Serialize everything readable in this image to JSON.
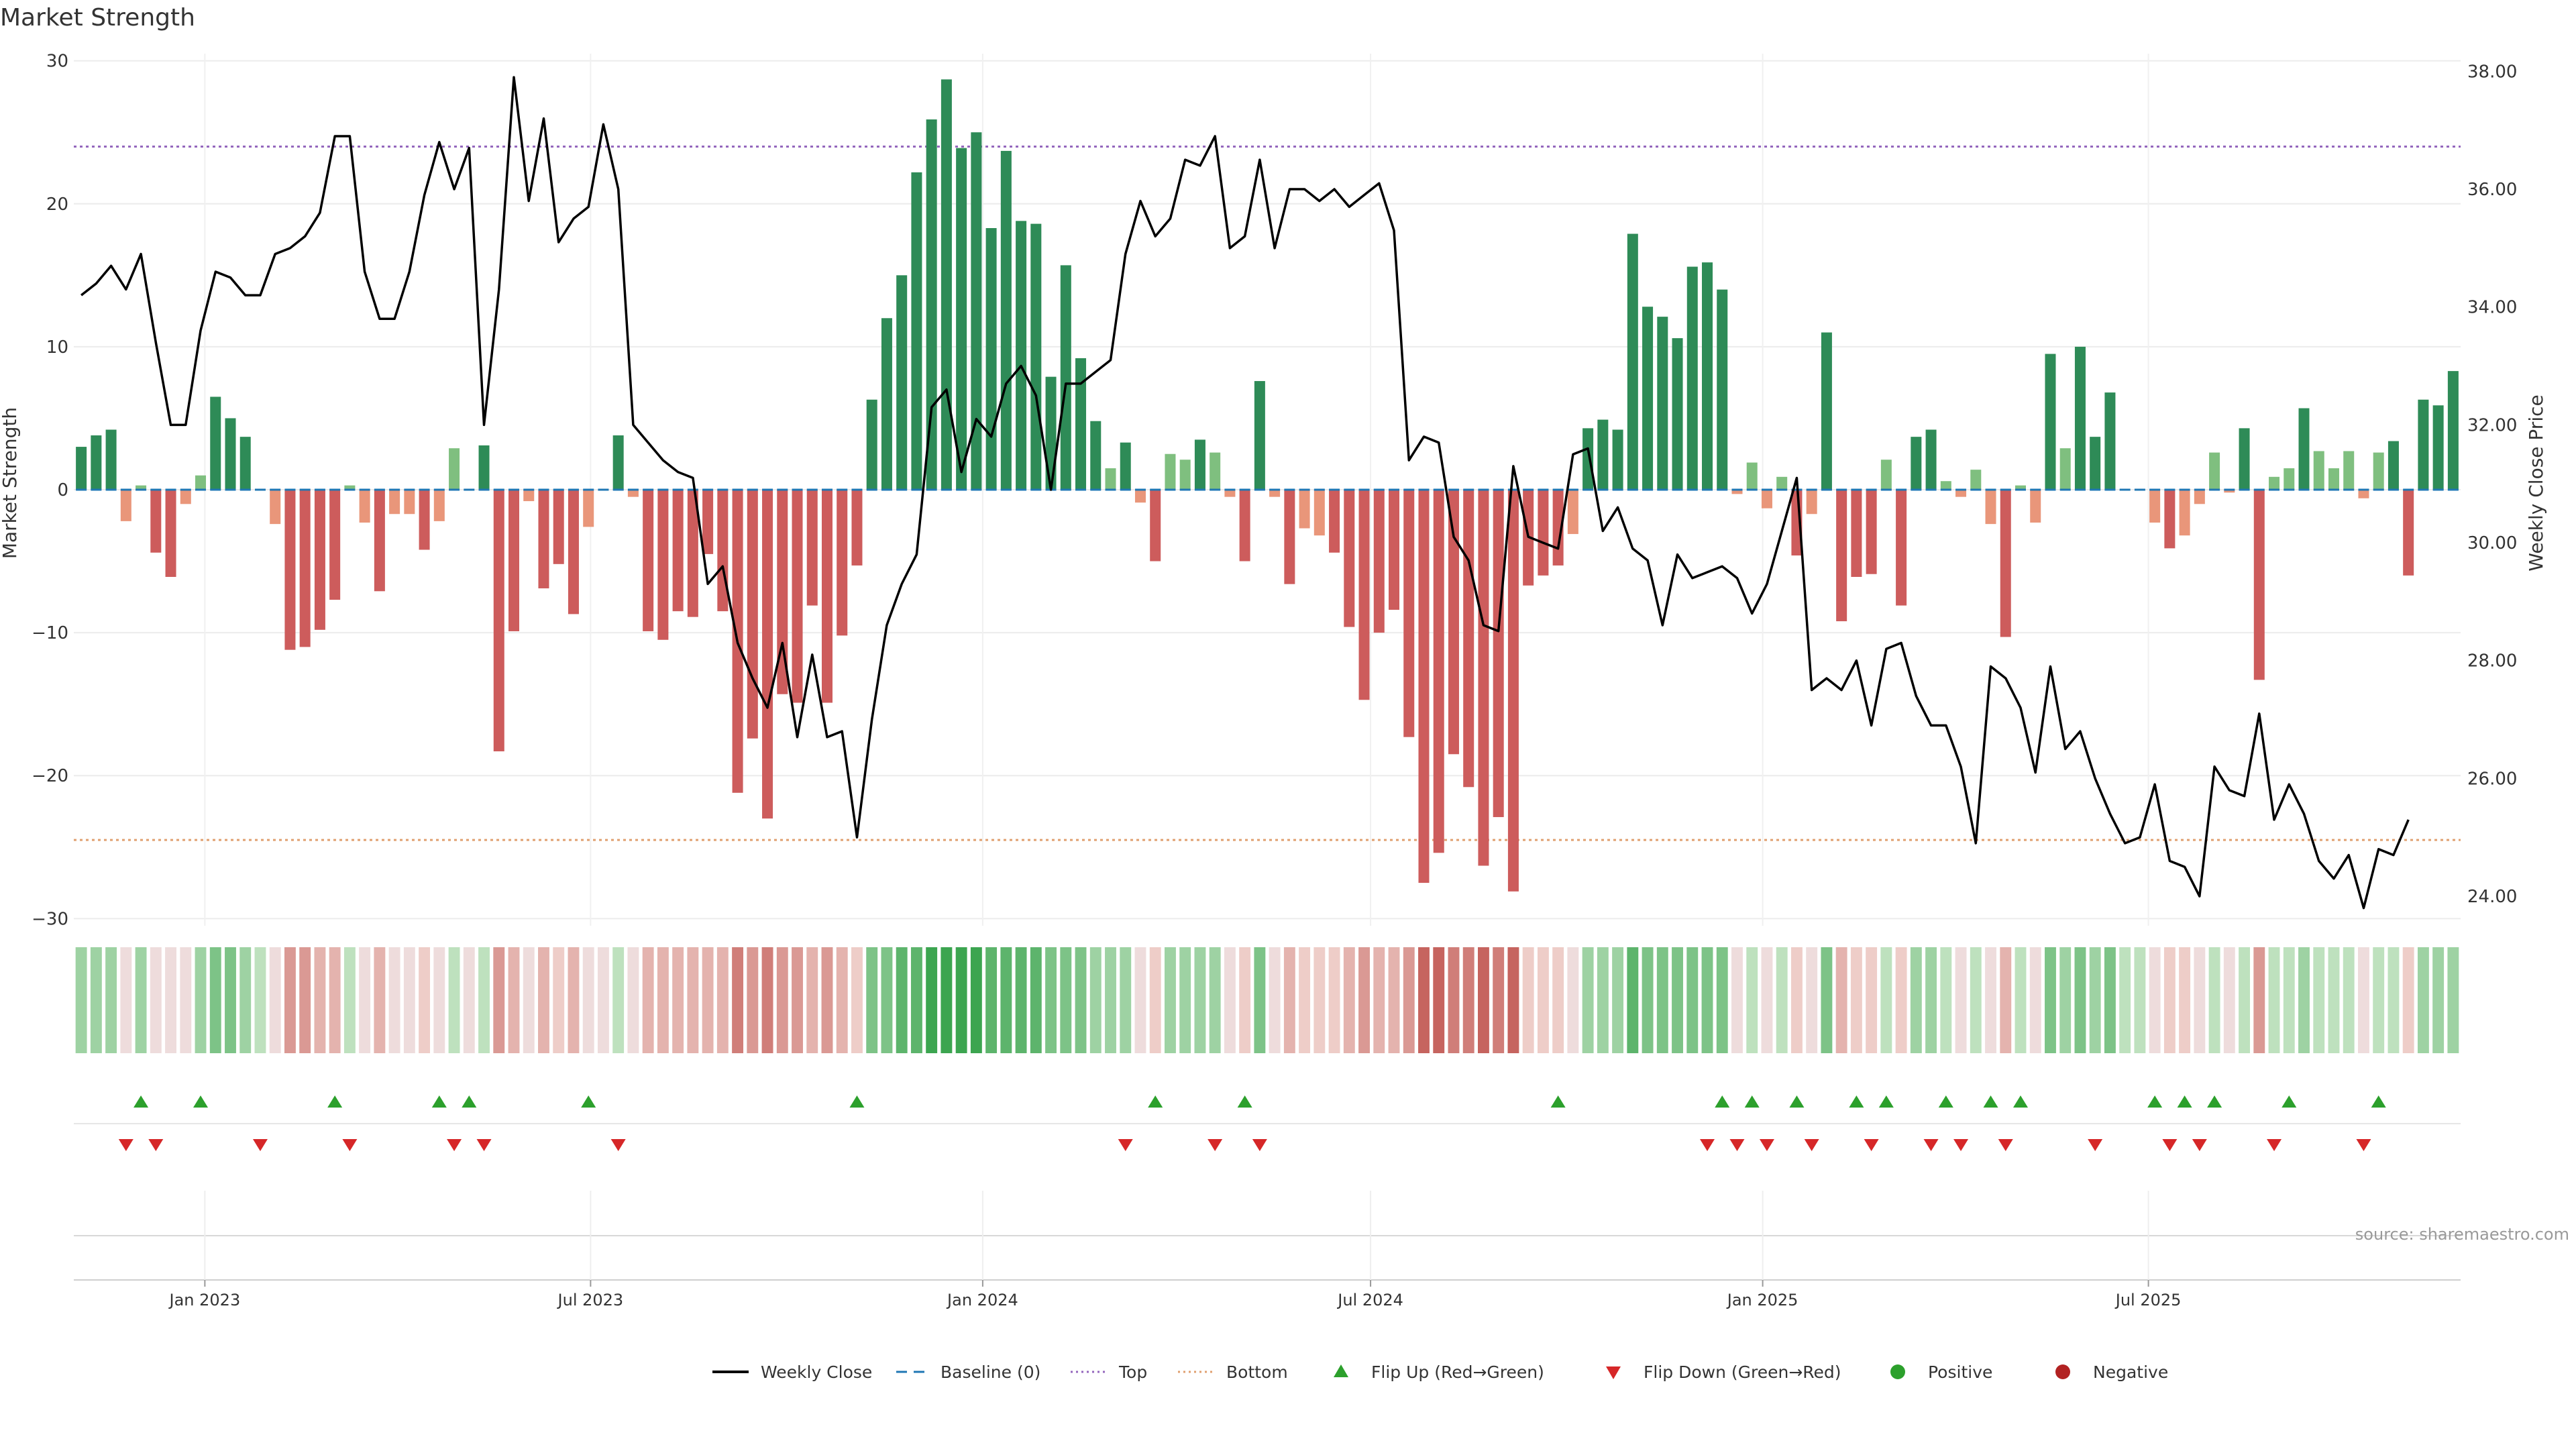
{
  "title": "Market Strength",
  "source": "source: sharemaestro.com",
  "colors": {
    "strong_green": "#2e8b57",
    "light_green": "#7fbf7f",
    "strong_red": "#cd5c5c",
    "light_red": "#e9967a",
    "price_line": "#000000",
    "baseline": "#1f77b4",
    "top_line": "#9467bd",
    "bottom_line": "#e0a070",
    "flip_up": "#2ca02c",
    "flip_down": "#d62728"
  },
  "legend": [
    {
      "label": "Weekly Close",
      "kind": "solid-line",
      "color": "#000000"
    },
    {
      "label": "Baseline (0)",
      "kind": "dash-line",
      "color": "#1f77b4"
    },
    {
      "label": "Top",
      "kind": "dot-line",
      "color": "#9467bd"
    },
    {
      "label": "Bottom",
      "kind": "dot-line",
      "color": "#e0a070"
    },
    {
      "label": "Flip Up (Red→Green)",
      "kind": "triangle-up",
      "color": "#2ca02c"
    },
    {
      "label": "Flip Down (Green→Red)",
      "kind": "triangle-down",
      "color": "#d62728"
    },
    {
      "label": "Positive",
      "kind": "dot",
      "color": "#2ca02c"
    },
    {
      "label": "Negative",
      "kind": "dot",
      "color": "#b22222"
    }
  ],
  "chart_data": {
    "type": "bar",
    "x_start": "2022-11-04",
    "x_interval": "1 week",
    "xticks": [
      {
        "label": "Jan 2023",
        "date": "2023-01-01"
      },
      {
        "label": "Jul 2023",
        "date": "2023-07-01"
      },
      {
        "label": "Jan 2024",
        "date": "2024-01-01"
      },
      {
        "label": "Jul 2024",
        "date": "2024-07-01"
      },
      {
        "label": "Jan 2025",
        "date": "2025-01-01"
      },
      {
        "label": "Jul 2025",
        "date": "2025-07-01"
      }
    ],
    "y_left": {
      "label": "Market Strength",
      "lim": [
        -30.5,
        30.5
      ],
      "ticks": [
        30,
        20,
        10,
        0,
        -10,
        -20,
        -30
      ],
      "tick_labels": [
        "30",
        "20",
        "10",
        "0",
        "−10",
        "−20",
        "−30"
      ]
    },
    "y_right": {
      "label": "Weekly Close Price",
      "lim": [
        23.5,
        38.3
      ],
      "ticks": [
        38,
        36,
        34,
        32,
        30,
        28,
        26,
        24
      ],
      "tick_labels": [
        "38.00",
        "36.00",
        "34.00",
        "32.00",
        "30.00",
        "28.00",
        "26.00",
        "24.00"
      ]
    },
    "top_level": 24,
    "bottom_level": -24.5,
    "strength": [
      3,
      3.8,
      4.2,
      -2.2,
      0.3,
      -4.4,
      -6.1,
      -1,
      1,
      6.5,
      5,
      3.7,
      0,
      -2.4,
      -11.2,
      -11,
      -9.8,
      -7.7,
      0.3,
      -2.3,
      -7.1,
      -1.7,
      -1.7,
      -4.2,
      -2.2,
      2.9,
      0,
      3.1,
      -18.3,
      -9.9,
      -0.8,
      -6.9,
      -5.2,
      -8.7,
      -2.6,
      0,
      3.8,
      -0.5,
      -9.9,
      -10.5,
      -8.5,
      -8.9,
      -4.5,
      -8.5,
      -21.2,
      -17.4,
      -23,
      -14.3,
      -14.9,
      -8.1,
      -14.9,
      -10.2,
      -5.3,
      6.3,
      12,
      15,
      22.2,
      25.9,
      28.7,
      23.9,
      25,
      18.3,
      23.7,
      18.8,
      18.6,
      7.9,
      15.7,
      9.2,
      4.8,
      1.5,
      3.3,
      -0.9,
      -5,
      2.5,
      2.1,
      3.5,
      2.6,
      -0.5,
      -5,
      7.6,
      -0.5,
      -6.6,
      -2.7,
      -3.2,
      -4.4,
      -9.6,
      -14.7,
      -10,
      -8.4,
      -17.3,
      -27.5,
      -25.4,
      -18.5,
      -20.8,
      -26.3,
      -22.9,
      -28.1,
      -6.7,
      -6,
      -5.3,
      -3.1,
      4.3,
      4.9,
      4.2,
      17.9,
      12.8,
      12.1,
      10.6,
      15.6,
      15.9,
      14,
      -0.3,
      1.9,
      -1.3,
      0.9,
      -4.6,
      -1.7,
      11,
      -9.2,
      -6.1,
      -5.9,
      2.1,
      -8.1,
      3.7,
      4.2,
      0.6,
      -0.5,
      1.4,
      -2.4,
      -10.3,
      0.3,
      -2.3,
      9.5,
      2.9,
      10,
      3.7,
      6.8,
      0,
      0,
      -2.3,
      -4.1,
      -3.2,
      -1,
      2.6,
      -0.2,
      4.3,
      -13.3,
      0.9,
      1.5,
      5.7,
      2.7,
      1.5,
      2.7,
      -0.6,
      2.6,
      3.4,
      -6,
      6.3,
      5.9,
      8.3
    ],
    "weekly_close": [
      34.2,
      34.4,
      34.7,
      34.3,
      34.9,
      33.4,
      32.0,
      32.0,
      33.6,
      34.6,
      34.5,
      34.2,
      34.2,
      34.9,
      35.0,
      35.2,
      35.6,
      36.9,
      36.9,
      34.6,
      33.8,
      33.8,
      34.6,
      35.9,
      36.8,
      36.0,
      36.7,
      32.0,
      34.3,
      37.9,
      35.8,
      37.2,
      35.1,
      35.5,
      35.7,
      37.1,
      36.0,
      32.0,
      31.7,
      31.4,
      31.2,
      31.1,
      29.3,
      29.6,
      28.3,
      27.7,
      27.2,
      28.3,
      26.7,
      28.1,
      26.7,
      26.8,
      25.0,
      27.0,
      28.6,
      29.3,
      29.8,
      32.3,
      32.6,
      31.2,
      32.1,
      31.8,
      32.7,
      33.0,
      32.5,
      30.9,
      32.7,
      32.7,
      32.9,
      33.1,
      34.9,
      35.8,
      35.2,
      35.5,
      36.5,
      36.4,
      36.9,
      35.0,
      35.2,
      36.5,
      35.0,
      36.0,
      36.0,
      35.8,
      36.0,
      35.7,
      35.9,
      36.1,
      35.3,
      31.4,
      31.8,
      31.7,
      30.1,
      29.7,
      28.6,
      28.5,
      31.3,
      30.1,
      30.0,
      29.9,
      31.5,
      31.6,
      30.2,
      30.6,
      29.9,
      29.7,
      28.6,
      29.8,
      29.4,
      29.5,
      29.6,
      29.4,
      28.8,
      29.3,
      30.2,
      31.1,
      27.5,
      27.7,
      27.5,
      28.0,
      26.9,
      28.2,
      28.3,
      27.4,
      26.9,
      26.9,
      26.2,
      24.9,
      27.9,
      27.7,
      27.2,
      26.1,
      27.9,
      26.5,
      26.8,
      26.0,
      25.4,
      24.9,
      25.0,
      25.9,
      24.6,
      24.5,
      24.0,
      26.2,
      25.8,
      25.7,
      27.1,
      25.3,
      25.9,
      25.4,
      24.6,
      24.3,
      24.7,
      23.8,
      24.8,
      24.7,
      25.3
    ],
    "shading": [
      2,
      2,
      2,
      0,
      2,
      0,
      0,
      0,
      2,
      3,
      3,
      2,
      1,
      0,
      -3,
      -3,
      -2,
      -2,
      1,
      0,
      -2,
      0,
      0,
      -1,
      0,
      1,
      0,
      1,
      -3,
      -2,
      0,
      -2,
      -1,
      -2,
      0,
      0,
      1,
      0,
      -2,
      -2,
      -2,
      -2,
      -2,
      -2,
      -4,
      -3,
      -4,
      -3,
      -3,
      -2,
      -3,
      -2,
      -1,
      3,
      3,
      4,
      4,
      5,
      5,
      5,
      5,
      4,
      4,
      4,
      4,
      3,
      3,
      3,
      2,
      2,
      2,
      0,
      -1,
      2,
      2,
      2,
      2,
      0,
      -1,
      3,
      0,
      -2,
      -1,
      -1,
      -1,
      -2,
      -3,
      -2,
      -2,
      -3,
      -5,
      -5,
      -4,
      -4,
      -5,
      -4,
      -5,
      -1,
      -1,
      -1,
      0,
      2,
      2,
      2,
      4,
      3,
      3,
      3,
      3,
      3,
      3,
      0,
      1,
      0,
      1,
      -1,
      0,
      3,
      -2,
      -1,
      -1,
      1,
      -1,
      2,
      2,
      1,
      0,
      1,
      0,
      -2,
      1,
      0,
      3,
      2,
      3,
      2,
      3,
      1,
      1,
      0,
      -1,
      -1,
      0,
      1,
      0,
      1,
      -3,
      1,
      1,
      2,
      1,
      1,
      1,
      0,
      1,
      1,
      -1,
      2,
      2,
      2
    ],
    "flip_up_indices": [
      4,
      8,
      17,
      24,
      26,
      34,
      52,
      72,
      78,
      99,
      110,
      112,
      115,
      119,
      121,
      125,
      128,
      130,
      139,
      141,
      143,
      148,
      154
    ],
    "flip_down_indices": [
      3,
      5,
      12,
      18,
      25,
      27,
      36,
      70,
      76,
      79,
      109,
      111,
      113,
      116,
      120,
      124,
      126,
      129,
      135,
      140,
      142,
      147,
      153
    ]
  }
}
